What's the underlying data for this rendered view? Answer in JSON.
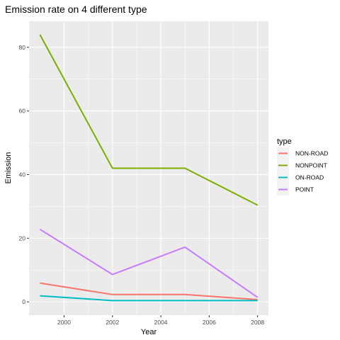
{
  "chart_data": {
    "type": "line",
    "title": "Emission rate on 4 different type",
    "xlabel": "Year",
    "ylabel": "Emission",
    "x": [
      1999,
      2002,
      2005,
      2008
    ],
    "xticks": [
      2000,
      2002,
      2004,
      2006,
      2008
    ],
    "yticks": [
      0,
      20,
      40,
      60,
      80
    ],
    "xlim": [
      1998.55,
      2008.45
    ],
    "ylim": [
      -4.2,
      88.2
    ],
    "grid": true,
    "legend_position": "right",
    "legend_title": "type",
    "series": [
      {
        "name": "NON-ROAD",
        "color": "#F8766D",
        "values": [
          5.9,
          2.3,
          2.3,
          0.7
        ]
      },
      {
        "name": "NONPOINT",
        "color": "#7CAE00",
        "values": [
          84.0,
          42.0,
          42.0,
          30.4
        ]
      },
      {
        "name": "ON-ROAD",
        "color": "#00BFC4",
        "values": [
          1.9,
          0.4,
          0.4,
          0.4
        ]
      },
      {
        "name": "POINT",
        "color": "#C77CFF",
        "values": [
          22.8,
          8.6,
          17.2,
          1.4
        ]
      }
    ]
  }
}
